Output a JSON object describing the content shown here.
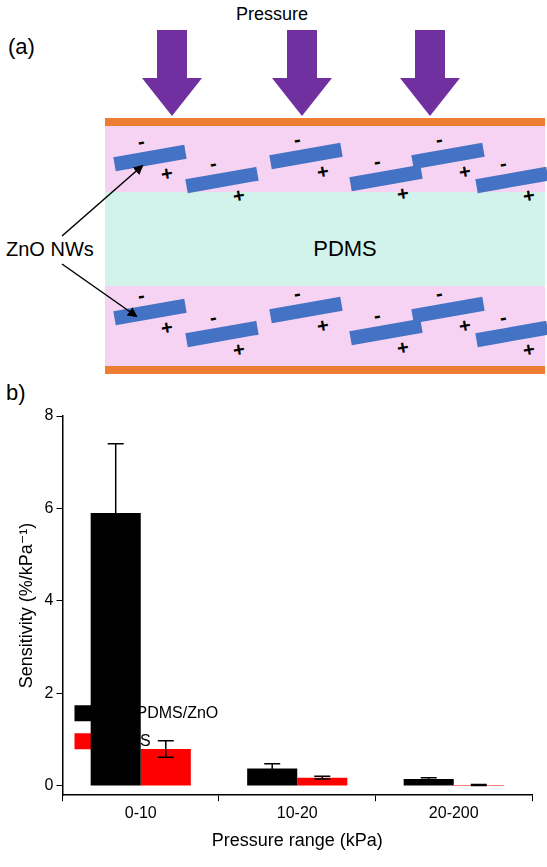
{
  "diagram": {
    "panel_label": "(a)",
    "pressure_label": "Pressure",
    "nanowire_label": "ZnO NWs",
    "matrix_label": "PDMS",
    "negative_charge": "-",
    "positive_charge": "+"
  },
  "chart_data": {
    "panel_label": "b)",
    "type": "bar",
    "categories": [
      "0-10",
      "10-20",
      "20-200"
    ],
    "series": [
      {
        "name": "Zno/PDMS/ZnO",
        "color": "#000000",
        "values": [
          5.9,
          0.38,
          0.15
        ],
        "errors": [
          1.5,
          0.1,
          0.03
        ]
      },
      {
        "name": "PDMS",
        "color": "#ff0000",
        "values": [
          0.8,
          0.18,
          0.02
        ],
        "errors": [
          0.18,
          0.03,
          0.01
        ]
      }
    ],
    "x_label": "Pressure range (kPa)",
    "y_label": "Sensitivity (%/kPa⁻¹)",
    "ylim": [
      -0.2,
      8
    ],
    "yticks": [
      0,
      2,
      4,
      6,
      8
    ],
    "grid": false,
    "legend": "upper right"
  }
}
